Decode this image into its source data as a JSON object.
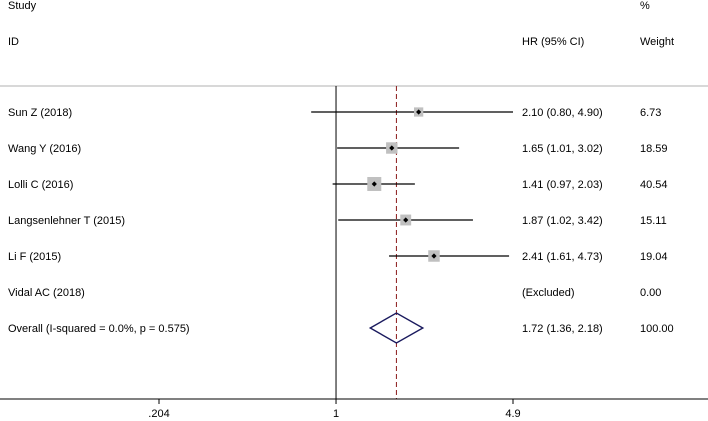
{
  "chart_data": {
    "type": "forest",
    "headers": {
      "study_line1": "Study",
      "study_line2": "ID",
      "hr": "HR (95% CI)",
      "weight_line1": "%",
      "weight_line2": "Weight"
    },
    "studies": [
      {
        "label": "Sun Z (2018)",
        "hr": 2.1,
        "lower": 0.8,
        "upper": 4.9,
        "hr_text": "2.10 (0.80, 4.90)",
        "weight": "6.73",
        "weight_value": 6.73
      },
      {
        "label": "Wang Y (2016)",
        "hr": 1.65,
        "lower": 1.01,
        "upper": 3.02,
        "hr_text": "1.65 (1.01, 3.02)",
        "weight": "18.59",
        "weight_value": 18.59
      },
      {
        "label": "Lolli C (2016)",
        "hr": 1.41,
        "lower": 0.97,
        "upper": 2.03,
        "hr_text": "1.41 (0.97, 2.03)",
        "weight": "40.54",
        "weight_value": 40.54
      },
      {
        "label": "Langsenlehner T (2015)",
        "hr": 1.87,
        "lower": 1.02,
        "upper": 3.42,
        "hr_text": "1.87 (1.02, 3.42)",
        "weight": "15.11",
        "weight_value": 15.11
      },
      {
        "label": "Li F (2015)",
        "hr": 2.41,
        "lower": 1.61,
        "upper": 4.73,
        "hr_text": "2.41 (1.61, 4.73)",
        "weight": "19.04",
        "weight_value": 19.04
      },
      {
        "label": "Vidal AC (2018)",
        "hr": null,
        "lower": null,
        "upper": null,
        "hr_text": "(Excluded)",
        "weight": "0.00",
        "weight_value": 0.0
      }
    ],
    "overall": {
      "label": "Overall  (I-squared = 0.0%, p = 0.575)",
      "hr": 1.72,
      "lower": 1.36,
      "upper": 2.18,
      "hr_text": "1.72 (1.36, 2.18)",
      "weight": "100.00"
    },
    "x_axis": {
      "scale": "log",
      "range": [
        0.204,
        4.9
      ],
      "ticks": [
        {
          "value": 0.204,
          "label": ".204"
        },
        {
          "value": 1,
          "label": "1"
        },
        {
          "value": 4.9,
          "label": "4.9"
        }
      ],
      "null_line": 1
    },
    "colors": {
      "marker": "#c0c0c0",
      "diamond": "#1a1a5e",
      "reference_line": "#8b1a1a",
      "lines": "#000000"
    }
  }
}
